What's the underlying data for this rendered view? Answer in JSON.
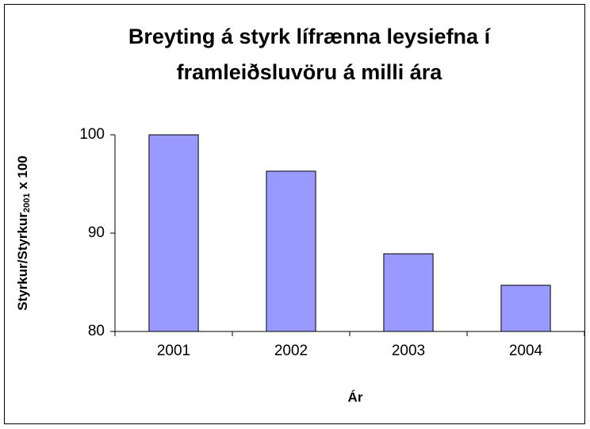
{
  "chart_data": {
    "type": "bar",
    "title": [
      "Breyting á styrk lífrænna leysiefna í",
      "framleiðsluvöru á milli ára"
    ],
    "xlabel": "Ár",
    "ylabel": [
      "Styrkur/Styrkur",
      "2001",
      " x 100"
    ],
    "categories": [
      "2001",
      "2002",
      "2003",
      "2004"
    ],
    "values": [
      100,
      96.3,
      87.9,
      84.7
    ],
    "color": "#9999ff",
    "ylim": [
      80,
      100
    ],
    "yticks": [
      80,
      90,
      100
    ],
    "grid": false
  }
}
